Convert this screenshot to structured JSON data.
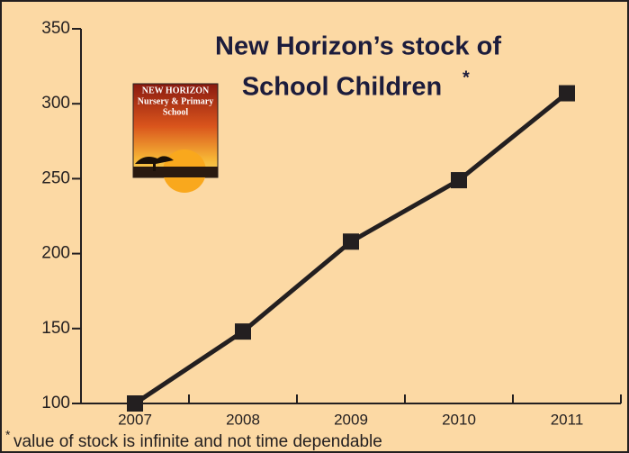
{
  "chart_data": {
    "type": "line",
    "title": [
      "New Horizon’s stock of",
      "School Children"
    ],
    "title_marker": "*",
    "footnote_marker": "*",
    "footnote": "value of stock is infinite and not time dependable",
    "logo_text": [
      "NEW HORIZON",
      "Nursery & Primary",
      "School"
    ],
    "categories": [
      "2007",
      "2008",
      "2009",
      "2010",
      "2011"
    ],
    "series": [
      {
        "color": "#231f20",
        "values": [
          100,
          148,
          208,
          249,
          307
        ]
      }
    ],
    "ylim": [
      100,
      350
    ],
    "yticks": [
      100,
      150,
      200,
      250,
      300,
      350
    ]
  }
}
